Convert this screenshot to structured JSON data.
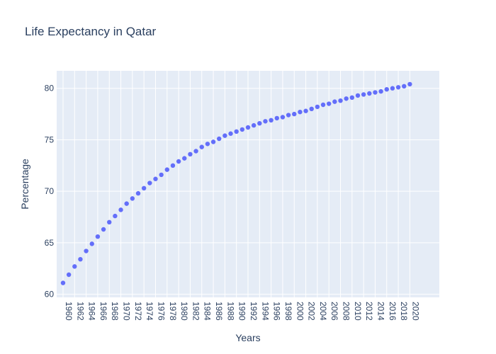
{
  "chart_data": {
    "type": "scatter",
    "title": "Life Expectancy in Qatar",
    "xlabel": "Years",
    "ylabel": "Percentage",
    "x": [
      1960,
      1961,
      1962,
      1963,
      1964,
      1965,
      1966,
      1967,
      1968,
      1969,
      1970,
      1971,
      1972,
      1973,
      1974,
      1975,
      1976,
      1977,
      1978,
      1979,
      1980,
      1981,
      1982,
      1983,
      1984,
      1985,
      1986,
      1987,
      1988,
      1989,
      1990,
      1991,
      1992,
      1993,
      1994,
      1995,
      1996,
      1997,
      1998,
      1999,
      2000,
      2001,
      2002,
      2003,
      2004,
      2005,
      2006,
      2007,
      2008,
      2009,
      2010,
      2011,
      2012,
      2013,
      2014,
      2015,
      2016,
      2017,
      2018,
      2019,
      2020
    ],
    "y": [
      61.1,
      61.9,
      62.7,
      63.4,
      64.2,
      64.9,
      65.6,
      66.3,
      67.0,
      67.6,
      68.2,
      68.8,
      69.3,
      69.8,
      70.3,
      70.8,
      71.2,
      71.6,
      72.1,
      72.5,
      72.9,
      73.2,
      73.6,
      73.9,
      74.3,
      74.6,
      74.8,
      75.1,
      75.4,
      75.6,
      75.8,
      76.0,
      76.2,
      76.4,
      76.6,
      76.8,
      76.9,
      77.1,
      77.2,
      77.4,
      77.5,
      77.7,
      77.8,
      78.0,
      78.2,
      78.4,
      78.5,
      78.7,
      78.8,
      79.0,
      79.1,
      79.3,
      79.4,
      79.5,
      79.6,
      79.7,
      79.9,
      80.0,
      80.1,
      80.2,
      80.4
    ],
    "xticks": [
      1960,
      1962,
      1964,
      1966,
      1968,
      1970,
      1972,
      1974,
      1976,
      1978,
      1980,
      1982,
      1984,
      1986,
      1988,
      1990,
      1992,
      1994,
      1996,
      1998,
      2000,
      2002,
      2004,
      2006,
      2008,
      2010,
      2012,
      2014,
      2016,
      2018,
      2020
    ],
    "yticks": [
      60,
      65,
      70,
      75,
      80
    ],
    "xlim": [
      1958.9,
      2025.1
    ],
    "ylim": [
      59.7,
      81.7
    ],
    "grid": true,
    "colors": {
      "marker": "#636efa",
      "plot_bg": "#e5ecf6",
      "grid": "#ffffff",
      "text": "#2a3f5f"
    }
  }
}
